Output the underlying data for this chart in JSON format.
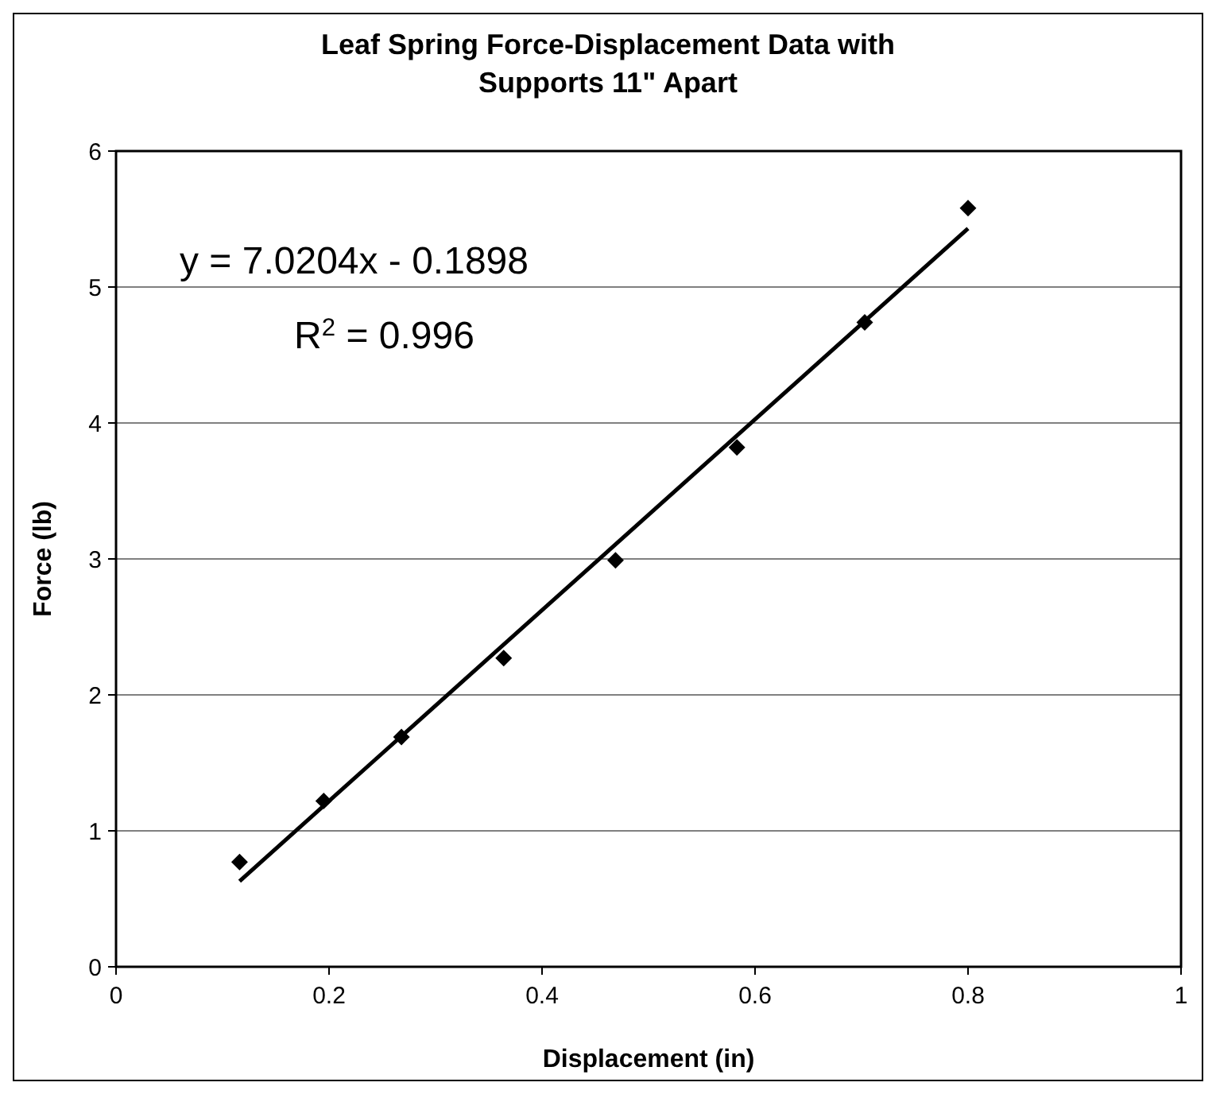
{
  "chart_data": {
    "type": "scatter",
    "title": "Leaf Spring Force-Displacement Data with Supports 11\" Apart",
    "xlabel": "Displacement (in)",
    "ylabel": "Force (lb)",
    "xlim": [
      0,
      1
    ],
    "xticks": [
      0,
      0.2,
      0.4,
      0.6,
      0.8,
      1
    ],
    "ylim": [
      0,
      6
    ],
    "yticks": [
      0,
      1,
      2,
      3,
      4,
      5,
      6
    ],
    "grid": "y",
    "series": [
      {
        "type": "scatter",
        "color": "#000000",
        "marker": "diamond",
        "x": [
          0.116,
          0.195,
          0.268,
          0.364,
          0.469,
          0.583,
          0.703,
          0.8
        ],
        "values": [
          0.77,
          1.22,
          1.69,
          2.27,
          2.99,
          3.82,
          4.74,
          5.58
        ]
      },
      {
        "type": "line",
        "color": "#000000",
        "line_style": "solid",
        "x": [
          0.116,
          0.8
        ],
        "values": [
          0.63,
          5.43
        ]
      }
    ],
    "annotations": [
      "y = 7.0204x - 0.1898",
      "R$^{2}$ = 0.996"
    ]
  }
}
